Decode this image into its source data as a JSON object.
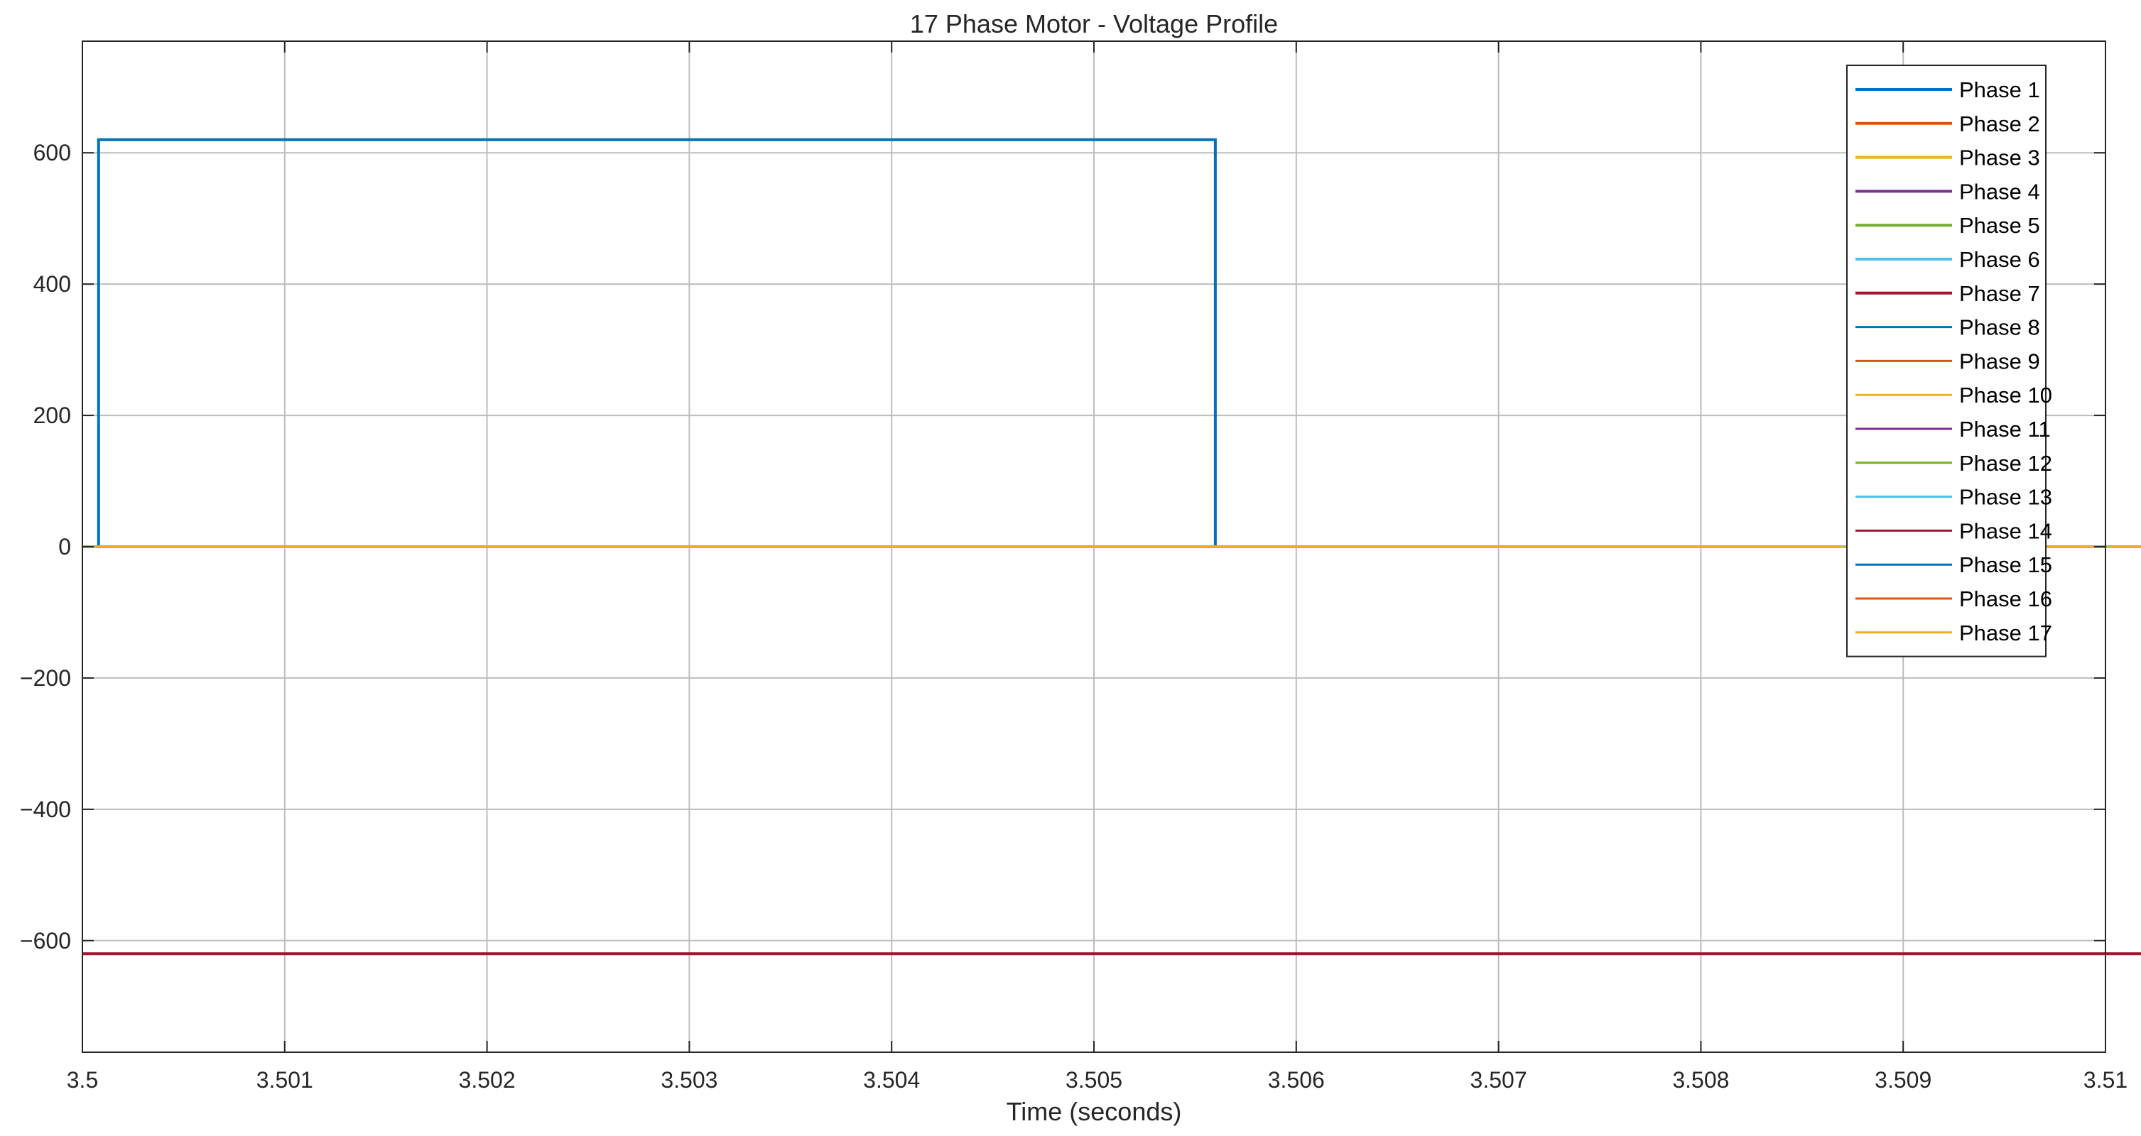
{
  "chart_data": {
    "type": "line",
    "title": "17 Phase Motor - Voltage Profile",
    "xlabel": "Time (seconds)",
    "ylabel": "",
    "xlim": [
      3.5,
      3.51
    ],
    "ylim": [
      -770,
      770
    ],
    "xticks": [
      3.5,
      3.501,
      3.502,
      3.503,
      3.504,
      3.505,
      3.506,
      3.507,
      3.508,
      3.509,
      3.51
    ],
    "xtick_labels": [
      "3.5",
      "3.501",
      "3.502",
      "3.503",
      "3.504",
      "3.505",
      "3.506",
      "3.507",
      "3.508",
      "3.509",
      "3.51"
    ],
    "yticks": [
      -600,
      -400,
      -200,
      0,
      200,
      400,
      600
    ],
    "ytick_labels": [
      "−600",
      "−400",
      "−200",
      "0",
      "200",
      "400",
      "600"
    ],
    "grid": true,
    "legend_position": "top-right",
    "dc_level": 620,
    "series": [
      {
        "name": "Phase 1",
        "color": "#0072BD",
        "width": 4,
        "x": [
          3.5,
          3.50008,
          3.50008,
          3.5056,
          3.5056,
          3.5102
        ],
        "y": [
          0,
          0,
          620,
          620,
          0,
          0
        ]
      },
      {
        "name": "Phase 2",
        "color": "#D95319",
        "width": 4,
        "x": [
          3.5,
          3.5102
        ],
        "y": [
          0,
          0
        ]
      },
      {
        "name": "Phase 3",
        "color": "#EDB120",
        "width": 4,
        "x": [
          3.5,
          3.5102
        ],
        "y": [
          0,
          0
        ]
      },
      {
        "name": "Phase 4",
        "color": "#7E2F8E",
        "width": 4,
        "x": [
          3.5,
          3.5102
        ],
        "y": [
          0,
          0
        ]
      },
      {
        "name": "Phase 5",
        "color": "#77AC30",
        "width": 4,
        "x": [
          3.5,
          3.5102
        ],
        "y": [
          0,
          0
        ]
      },
      {
        "name": "Phase 6",
        "color": "#4DBEEE",
        "width": 4,
        "x": [
          3.5,
          3.5102
        ],
        "y": [
          0,
          0
        ]
      },
      {
        "name": "Phase 7",
        "color": "#A2142F",
        "width": 4,
        "x": [
          3.5,
          3.5102
        ],
        "y": [
          -620,
          -620
        ]
      },
      {
        "name": "Phase 8",
        "color": "#0072BD",
        "width": 3,
        "x": [
          3.5,
          3.5102
        ],
        "y": [
          0,
          0
        ]
      },
      {
        "name": "Phase 9",
        "color": "#D95319",
        "width": 3,
        "x": [
          3.5,
          3.5102
        ],
        "y": [
          0,
          0
        ]
      },
      {
        "name": "Phase 10",
        "color": "#EDB120",
        "width": 3,
        "x": [
          3.5,
          3.5102
        ],
        "y": [
          0,
          0
        ]
      },
      {
        "name": "Phase 11",
        "color": "#7E2F8E",
        "width": 3,
        "x": [
          3.5,
          3.5102
        ],
        "y": [
          0,
          0
        ]
      },
      {
        "name": "Phase 12",
        "color": "#77AC30",
        "width": 3,
        "x": [
          3.5,
          3.5102
        ],
        "y": [
          0,
          0
        ]
      },
      {
        "name": "Phase 13",
        "color": "#4DBEEE",
        "width": 3,
        "x": [
          3.5,
          3.5102
        ],
        "y": [
          0,
          0
        ]
      },
      {
        "name": "Phase 14",
        "color": "#A2142F",
        "width": 3,
        "x": [
          3.5,
          3.5102
        ],
        "y": [
          0,
          0
        ]
      },
      {
        "name": "Phase 15",
        "color": "#0072BD",
        "width": 3,
        "x": [
          3.5,
          3.5102
        ],
        "y": [
          0,
          0
        ]
      },
      {
        "name": "Phase 16",
        "color": "#D95319",
        "width": 3,
        "x": [
          3.5,
          3.5102
        ],
        "y": [
          0,
          0
        ]
      },
      {
        "name": "Phase  17",
        "color": "#EDB120",
        "width": 3,
        "x": [
          3.5,
          3.5102
        ],
        "y": [
          0,
          0
        ]
      }
    ]
  }
}
